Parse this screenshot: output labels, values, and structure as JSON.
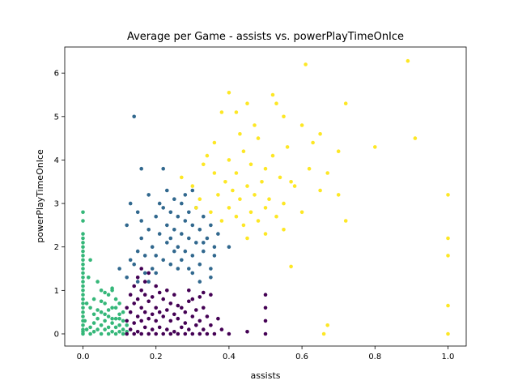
{
  "chart_data": {
    "type": "scatter",
    "title": "Average per Game - assists vs. powerPlayTimeOnIce",
    "xlabel": "assists",
    "ylabel": "powerPlayTimeOnIce",
    "xlim": [
      -0.05,
      1.05
    ],
    "ylim": [
      -0.28,
      6.6
    ],
    "xticks": [
      0.0,
      0.2,
      0.4,
      0.6,
      0.8,
      1.0
    ],
    "xtick_labels": [
      "0.0",
      "0.2",
      "0.4",
      "0.6",
      "0.8",
      "1.0"
    ],
    "yticks": [
      0,
      1,
      2,
      3,
      4,
      5,
      6
    ],
    "ytick_labels": [
      "0",
      "1",
      "2",
      "3",
      "4",
      "5",
      "6"
    ],
    "grid": false,
    "legend": "none",
    "colormap": "viridis",
    "series": [
      {
        "color": "#35b779",
        "values": [
          [
            0,
            0
          ],
          [
            0,
            0.05
          ],
          [
            0,
            0.1
          ],
          [
            0,
            0.2
          ],
          [
            0,
            0.3
          ],
          [
            0,
            0.4
          ],
          [
            0,
            0.5
          ],
          [
            0,
            0.6
          ],
          [
            0,
            0.7
          ],
          [
            0,
            0.8
          ],
          [
            0,
            0.9
          ],
          [
            0,
            1.0
          ],
          [
            0,
            1.1
          ],
          [
            0,
            1.2
          ],
          [
            0,
            1.3
          ],
          [
            0,
            1.4
          ],
          [
            0,
            1.5
          ],
          [
            0,
            1.6
          ],
          [
            0,
            1.7
          ],
          [
            0,
            1.8
          ],
          [
            0,
            1.9
          ],
          [
            0,
            2.0
          ],
          [
            0,
            2.1
          ],
          [
            0,
            2.2
          ],
          [
            0,
            2.3
          ],
          [
            0,
            2.6
          ],
          [
            0,
            2.8
          ],
          [
            0.005,
            0.3
          ],
          [
            0.01,
            0.1
          ],
          [
            0.02,
            0
          ],
          [
            0.02,
            0.15
          ],
          [
            0.03,
            0.05
          ],
          [
            0.03,
            0.25
          ],
          [
            0.04,
            0.1
          ],
          [
            0.04,
            0.35
          ],
          [
            0.05,
            0
          ],
          [
            0.05,
            0.2
          ],
          [
            0.05,
            0.5
          ],
          [
            0.06,
            0.1
          ],
          [
            0.06,
            0.3
          ],
          [
            0.06,
            0.7
          ],
          [
            0.07,
            0
          ],
          [
            0.07,
            0.15
          ],
          [
            0.07,
            0.4
          ],
          [
            0.07,
            0.9
          ],
          [
            0.08,
            0.05
          ],
          [
            0.08,
            0.25
          ],
          [
            0.08,
            0.6
          ],
          [
            0.08,
            1.0
          ],
          [
            0.09,
            0
          ],
          [
            0.09,
            0.15
          ],
          [
            0.09,
            0.35
          ],
          [
            0.09,
            0.8
          ],
          [
            0.1,
            0.05
          ],
          [
            0.1,
            0.2
          ],
          [
            0.1,
            0.45
          ],
          [
            0.11,
            0
          ],
          [
            0.11,
            0.1
          ],
          [
            0.11,
            0.3
          ],
          [
            0.02,
            0.6
          ],
          [
            0.03,
            0.8
          ],
          [
            0.01,
            0.7
          ],
          [
            0.05,
            1.0
          ],
          [
            0.06,
            0.95
          ],
          [
            0.04,
            1.2
          ],
          [
            0.02,
            1.7
          ],
          [
            0.015,
            1.3
          ],
          [
            0.08,
            1.05
          ],
          [
            0.09,
            0.6
          ],
          [
            0.1,
            0.7
          ],
          [
            0.12,
            0.2
          ],
          [
            0.12,
            0.05
          ],
          [
            0.04,
            0.55
          ],
          [
            0.05,
            0.75
          ],
          [
            0.03,
            0.45
          ],
          [
            0.07,
            0.55
          ],
          [
            0.06,
            0.45
          ],
          [
            0.08,
            0.35
          ],
          [
            0.1,
            0.35
          ],
          [
            0.11,
            0.5
          ]
        ]
      },
      {
        "color": "#440154",
        "values": [
          [
            0.12,
            0
          ],
          [
            0.12,
            0.3
          ],
          [
            0.12,
            0.6
          ],
          [
            0.13,
            0.1
          ],
          [
            0.13,
            0.5
          ],
          [
            0.13,
            0.9
          ],
          [
            0.14,
            0
          ],
          [
            0.14,
            0.25
          ],
          [
            0.14,
            0.7
          ],
          [
            0.14,
            1.1
          ],
          [
            0.15,
            0.05
          ],
          [
            0.15,
            0.4
          ],
          [
            0.15,
            0.8
          ],
          [
            0.15,
            1.3
          ],
          [
            0.16,
            0
          ],
          [
            0.16,
            0.3
          ],
          [
            0.16,
            0.6
          ],
          [
            0.16,
            1.0
          ],
          [
            0.16,
            1.5
          ],
          [
            0.17,
            0.15
          ],
          [
            0.17,
            0.5
          ],
          [
            0.17,
            0.9
          ],
          [
            0.17,
            1.2
          ],
          [
            0.18,
            0
          ],
          [
            0.18,
            0.35
          ],
          [
            0.18,
            0.75
          ],
          [
            0.18,
            1.4
          ],
          [
            0.19,
            0.1
          ],
          [
            0.19,
            0.45
          ],
          [
            0.19,
            0.85
          ],
          [
            0.2,
            0
          ],
          [
            0.2,
            0.3
          ],
          [
            0.2,
            0.6
          ],
          [
            0.2,
            1.1
          ],
          [
            0.21,
            0.15
          ],
          [
            0.21,
            0.5
          ],
          [
            0.21,
            0.95
          ],
          [
            0.22,
            0
          ],
          [
            0.22,
            0.4
          ],
          [
            0.22,
            0.8
          ],
          [
            0.23,
            0.1
          ],
          [
            0.23,
            0.55
          ],
          [
            0.23,
            1.0
          ],
          [
            0.24,
            0
          ],
          [
            0.24,
            0.3
          ],
          [
            0.24,
            0.7
          ],
          [
            0.25,
            0.05
          ],
          [
            0.25,
            0.45
          ],
          [
            0.25,
            0.9
          ],
          [
            0.26,
            0
          ],
          [
            0.26,
            0.35
          ],
          [
            0.26,
            0.65
          ],
          [
            0.27,
            0.15
          ],
          [
            0.27,
            0.6
          ],
          [
            0.28,
            0
          ],
          [
            0.28,
            0.25
          ],
          [
            0.28,
            0.5
          ],
          [
            0.29,
            0.1
          ],
          [
            0.29,
            0.75
          ],
          [
            0.3,
            0
          ],
          [
            0.3,
            0.4
          ],
          [
            0.3,
            0.8
          ],
          [
            0.31,
            0.2
          ],
          [
            0.31,
            0.55
          ],
          [
            0.32,
            0
          ],
          [
            0.32,
            0.3
          ],
          [
            0.33,
            0.1
          ],
          [
            0.33,
            0.6
          ],
          [
            0.34,
            0
          ],
          [
            0.34,
            0.4
          ],
          [
            0.35,
            0.2
          ],
          [
            0.36,
            0
          ],
          [
            0.38,
            0.1
          ],
          [
            0.4,
            0
          ],
          [
            0.35,
            0.9
          ],
          [
            0.32,
            0.85
          ],
          [
            0.45,
            0.05
          ],
          [
            0.5,
            0
          ],
          [
            0.5,
            0.3
          ],
          [
            0.5,
            0.6
          ],
          [
            0.5,
            0.9
          ],
          [
            0.37,
            0.35
          ],
          [
            0.33,
            0.95
          ],
          [
            0.29,
            1.0
          ]
        ]
      },
      {
        "color": "#31688e",
        "values": [
          [
            0.14,
            5.0
          ],
          [
            0.14,
            1.6
          ],
          [
            0.15,
            1.9
          ],
          [
            0.16,
            2.2
          ],
          [
            0.16,
            2.6
          ],
          [
            0.17,
            1.8
          ],
          [
            0.18,
            2.4
          ],
          [
            0.18,
            3.2
          ],
          [
            0.19,
            2.0
          ],
          [
            0.19,
            1.5
          ],
          [
            0.2,
            2.7
          ],
          [
            0.2,
            1.8
          ],
          [
            0.21,
            3.0
          ],
          [
            0.21,
            2.3
          ],
          [
            0.22,
            3.8
          ],
          [
            0.22,
            1.7
          ],
          [
            0.22,
            2.9
          ],
          [
            0.23,
            2.1
          ],
          [
            0.23,
            2.5
          ],
          [
            0.23,
            3.3
          ],
          [
            0.24,
            1.6
          ],
          [
            0.24,
            2.8
          ],
          [
            0.24,
            2.2
          ],
          [
            0.25,
            1.9
          ],
          [
            0.25,
            3.1
          ],
          [
            0.25,
            2.4
          ],
          [
            0.26,
            1.5
          ],
          [
            0.26,
            2.7
          ],
          [
            0.26,
            2.0
          ],
          [
            0.27,
            3.0
          ],
          [
            0.27,
            2.3
          ],
          [
            0.27,
            1.7
          ],
          [
            0.28,
            2.6
          ],
          [
            0.28,
            1.9
          ],
          [
            0.28,
            3.2
          ],
          [
            0.29,
            2.2
          ],
          [
            0.29,
            1.5
          ],
          [
            0.29,
            2.8
          ],
          [
            0.3,
            2.5
          ],
          [
            0.3,
            1.8
          ],
          [
            0.3,
            3.3
          ],
          [
            0.31,
            2.1
          ],
          [
            0.31,
            2.9
          ],
          [
            0.32,
            1.6
          ],
          [
            0.32,
            2.4
          ],
          [
            0.33,
            2.7
          ],
          [
            0.33,
            1.9
          ],
          [
            0.34,
            2.2
          ],
          [
            0.35,
            2.5
          ],
          [
            0.35,
            1.5
          ],
          [
            0.36,
            2.0
          ],
          [
            0.37,
            2.3
          ],
          [
            0.1,
            1.5
          ],
          [
            0.12,
            1.3
          ],
          [
            0.13,
            1.7
          ],
          [
            0.15,
            1.2
          ],
          [
            0.17,
            1.4
          ],
          [
            0.3,
            1.4
          ],
          [
            0.32,
            1.2
          ],
          [
            0.35,
            1.3
          ],
          [
            0.33,
            2.1
          ],
          [
            0.4,
            2.0
          ],
          [
            0.36,
            1.8
          ],
          [
            0.12,
            2.5
          ],
          [
            0.13,
            3.0
          ],
          [
            0.16,
            3.8
          ],
          [
            0.15,
            2.8
          ],
          [
            0.18,
            1.2
          ],
          [
            0.2,
            1.4
          ]
        ]
      },
      {
        "color": "#fde725",
        "values": [
          [
            0.61,
            6.2
          ],
          [
            0.89,
            6.28
          ],
          [
            0.4,
            5.55
          ],
          [
            0.45,
            5.3
          ],
          [
            0.52,
            5.5
          ],
          [
            0.53,
            5.3
          ],
          [
            0.55,
            5.0
          ],
          [
            0.6,
            4.8
          ],
          [
            0.65,
            4.6
          ],
          [
            0.7,
            4.2
          ],
          [
            0.72,
            5.3
          ],
          [
            0.8,
            4.3
          ],
          [
            0.91,
            4.5
          ],
          [
            1.0,
            3.2
          ],
          [
            1.0,
            2.2
          ],
          [
            1.0,
            1.8
          ],
          [
            1.0,
            0.65
          ],
          [
            1.0,
            0
          ],
          [
            0.67,
            0.2
          ],
          [
            0.66,
            0
          ],
          [
            0.57,
            1.55
          ],
          [
            0.27,
            3.6
          ],
          [
            0.3,
            3.4
          ],
          [
            0.32,
            3.1
          ],
          [
            0.33,
            3.9
          ],
          [
            0.35,
            2.8
          ],
          [
            0.36,
            4.4
          ],
          [
            0.37,
            3.2
          ],
          [
            0.38,
            2.6
          ],
          [
            0.39,
            3.5
          ],
          [
            0.4,
            2.9
          ],
          [
            0.4,
            4.0
          ],
          [
            0.41,
            3.3
          ],
          [
            0.42,
            2.7
          ],
          [
            0.42,
            3.7
          ],
          [
            0.43,
            3.1
          ],
          [
            0.44,
            4.2
          ],
          [
            0.44,
            2.5
          ],
          [
            0.45,
            3.4
          ],
          [
            0.46,
            2.8
          ],
          [
            0.46,
            3.9
          ],
          [
            0.47,
            3.2
          ],
          [
            0.48,
            2.6
          ],
          [
            0.48,
            4.5
          ],
          [
            0.49,
            3.5
          ],
          [
            0.5,
            2.9
          ],
          [
            0.5,
            3.8
          ],
          [
            0.51,
            3.1
          ],
          [
            0.52,
            4.1
          ],
          [
            0.53,
            2.7
          ],
          [
            0.54,
            3.6
          ],
          [
            0.55,
            3.0
          ],
          [
            0.56,
            4.3
          ],
          [
            0.58,
            3.4
          ],
          [
            0.6,
            2.8
          ],
          [
            0.62,
            3.8
          ],
          [
            0.63,
            4.4
          ],
          [
            0.65,
            3.3
          ],
          [
            0.67,
            3.7
          ],
          [
            0.7,
            3.2
          ],
          [
            0.72,
            2.6
          ],
          [
            0.55,
            2.4
          ],
          [
            0.5,
            2.3
          ],
          [
            0.45,
            2.2
          ],
          [
            0.43,
            4.6
          ],
          [
            0.38,
            5.1
          ],
          [
            0.42,
            5.1
          ],
          [
            0.36,
            3.7
          ],
          [
            0.34,
            4.1
          ],
          [
            0.31,
            2.9
          ],
          [
            0.47,
            4.8
          ],
          [
            0.57,
            3.5
          ]
        ]
      }
    ]
  }
}
